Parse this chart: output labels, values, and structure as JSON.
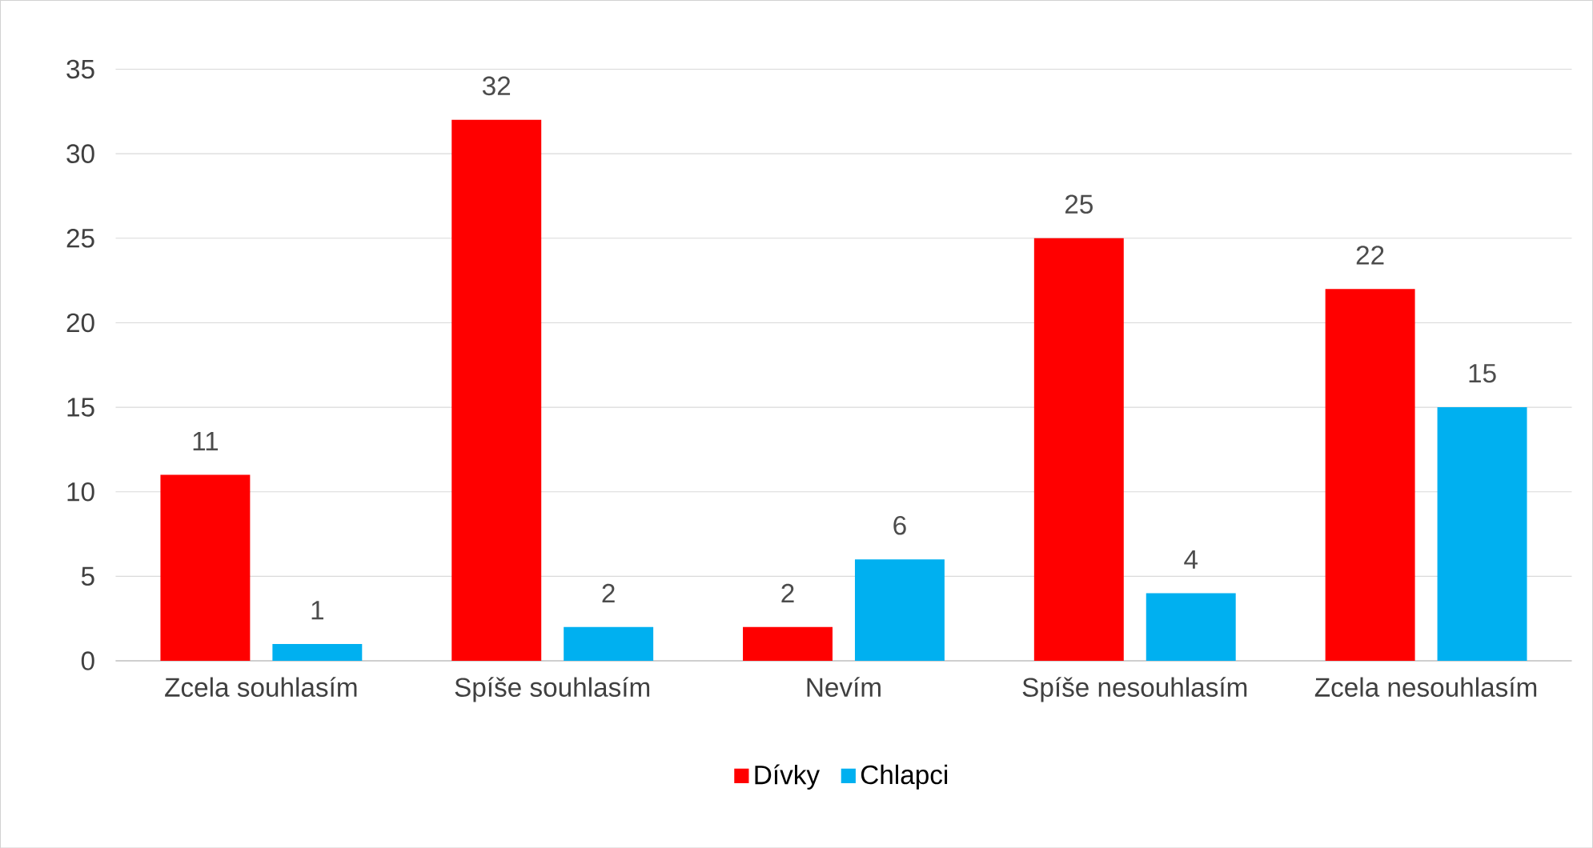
{
  "chart_data": {
    "type": "bar",
    "categories": [
      "Zcela souhlasím",
      "Spíše souhlasím",
      "Nevím",
      "Spíše nesouhlasím",
      "Zcela nesouhlasím"
    ],
    "series": [
      {
        "name": "Dívky",
        "color": "#ff0000",
        "values": [
          11,
          32,
          2,
          25,
          22
        ]
      },
      {
        "name": "Chlapci",
        "color": "#00b0f0",
        "values": [
          1,
          2,
          6,
          4,
          15
        ]
      }
    ],
    "ylim": [
      0,
      35
    ],
    "yticks": [
      0,
      5,
      10,
      15,
      20,
      25,
      30,
      35
    ],
    "grid": "y",
    "legend": "bottom",
    "data_labels": true
  }
}
